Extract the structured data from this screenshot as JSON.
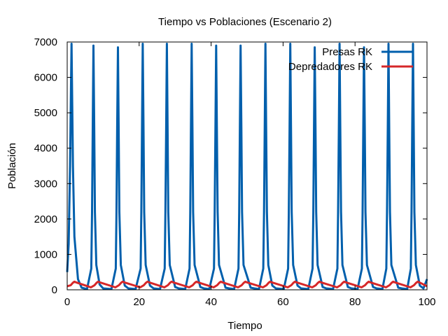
{
  "chart_data": {
    "type": "line",
    "title": "Tiempo vs Poblaciones (Escenario 2)",
    "xlabel": "Tiempo",
    "ylabel": "Población",
    "xlim": [
      0,
      100
    ],
    "ylim": [
      0,
      7000
    ],
    "xticks": [
      0,
      20,
      40,
      60,
      80,
      100
    ],
    "yticks": [
      0,
      1000,
      2000,
      3000,
      4000,
      5000,
      6000,
      7000
    ],
    "grid": false,
    "legend_position": "top-right",
    "series": [
      {
        "name": "Presas RK",
        "color": "#005fac",
        "x": [
          0,
          0.4,
          0.8,
          1.0,
          1.2,
          1.4,
          1.6,
          2.0,
          3.0,
          4.0,
          5.5,
          6.7,
          6.9,
          7.1,
          7.3,
          7.5,
          7.7,
          8.1,
          9.0,
          10.0,
          12.3,
          13.5,
          13.7,
          13.9,
          14.1,
          14.3,
          14.5,
          14.9,
          16.0,
          17.0,
          19.0,
          20.4,
          20.6,
          20.8,
          21.0,
          21.2,
          21.4,
          21.8,
          23.0,
          24.0,
          25.8,
          27.1,
          27.3,
          27.5,
          27.7,
          27.9,
          28.1,
          28.5,
          30.0,
          31.0,
          32.8,
          34.0,
          34.2,
          34.4,
          34.6,
          34.8,
          35.0,
          35.4,
          37.0,
          38.0,
          39.5,
          40.8,
          41.0,
          41.2,
          41.4,
          41.6,
          41.8,
          42.2,
          44.0,
          45.0,
          46.4,
          47.6,
          47.8,
          48.0,
          48.2,
          48.4,
          48.6,
          49.0,
          51.0,
          52.0,
          53.3,
          54.5,
          54.7,
          54.9,
          55.1,
          55.3,
          55.5,
          55.9,
          57.0,
          58.0,
          60.2,
          61.4,
          61.6,
          61.8,
          62.0,
          62.2,
          62.4,
          62.8,
          64.0,
          65.0,
          67.0,
          68.2,
          68.4,
          68.6,
          68.8,
          69.0,
          69.2,
          69.6,
          71.0,
          72.0,
          73.9,
          75.1,
          75.3,
          75.5,
          75.7,
          75.9,
          76.1,
          76.5,
          78.0,
          79.0,
          80.7,
          81.9,
          82.1,
          82.3,
          82.5,
          82.7,
          82.9,
          83.3,
          85.0,
          86.0,
          87.6,
          88.7,
          88.9,
          89.1,
          89.3,
          89.5,
          89.7,
          90.1,
          92.0,
          93.0,
          94.5,
          95.5,
          95.7,
          95.9,
          96.1,
          96.3,
          96.5,
          96.9,
          98.0,
          99.0,
          100.0
        ],
        "values": [
          500,
          1300,
          3500,
          5200,
          6950,
          5200,
          3500,
          1500,
          300,
          60,
          20,
          600,
          2200,
          4600,
          6900,
          4600,
          2200,
          700,
          150,
          40,
          20,
          600,
          2200,
          4600,
          6850,
          4600,
          2200,
          700,
          120,
          40,
          20,
          600,
          2200,
          4600,
          6950,
          4600,
          2200,
          700,
          120,
          40,
          20,
          600,
          2200,
          4600,
          6950,
          4600,
          2200,
          700,
          80,
          40,
          20,
          600,
          2200,
          4600,
          6950,
          4600,
          2200,
          700,
          80,
          40,
          20,
          600,
          2200,
          4600,
          6900,
          4600,
          2200,
          700,
          60,
          40,
          20,
          600,
          2200,
          4600,
          6900,
          4600,
          2200,
          700,
          60,
          40,
          20,
          600,
          2200,
          4600,
          6950,
          4600,
          2200,
          700,
          120,
          40,
          20,
          600,
          2200,
          4600,
          6950,
          4600,
          2200,
          700,
          120,
          40,
          20,
          600,
          2200,
          4600,
          6850,
          4600,
          2200,
          700,
          80,
          40,
          20,
          600,
          2200,
          4600,
          6950,
          4600,
          2200,
          700,
          80,
          40,
          20,
          600,
          2200,
          4600,
          6850,
          4600,
          2200,
          700,
          80,
          40,
          20,
          600,
          2200,
          4600,
          6950,
          4600,
          2200,
          700,
          60,
          40,
          20,
          600,
          2200,
          4600,
          6950,
          4600,
          2200,
          700,
          120,
          40,
          300
        ]
      },
      {
        "name": "Depredadores RK",
        "color": "#d62728",
        "x": [
          0,
          1.0,
          1.6,
          2.0,
          2.5,
          6.6,
          7.6,
          8.2,
          8.6,
          9.1,
          13.4,
          14.4,
          15.0,
          15.4,
          15.9,
          20.3,
          21.3,
          21.9,
          22.3,
          22.8,
          27.0,
          28.0,
          28.6,
          29.0,
          29.5,
          33.9,
          34.9,
          35.5,
          35.9,
          36.4,
          40.7,
          41.7,
          42.3,
          42.7,
          43.2,
          47.5,
          48.5,
          49.1,
          49.5,
          50.0,
          54.4,
          55.4,
          56.0,
          56.4,
          56.9,
          61.3,
          62.3,
          62.9,
          63.3,
          63.8,
          68.1,
          69.1,
          69.7,
          70.1,
          70.6,
          75.0,
          76.0,
          76.6,
          77.0,
          77.5,
          81.8,
          82.8,
          83.4,
          83.8,
          84.3,
          88.6,
          89.6,
          90.2,
          90.6,
          91.1,
          95.4,
          96.4,
          97.0,
          97.4,
          97.9,
          100.0
        ],
        "values": [
          100,
          130,
          200,
          230,
          210,
          70,
          130,
          200,
          230,
          210,
          70,
          130,
          200,
          230,
          210,
          70,
          130,
          200,
          230,
          210,
          70,
          130,
          200,
          230,
          210,
          70,
          130,
          200,
          230,
          210,
          70,
          130,
          200,
          230,
          210,
          70,
          130,
          200,
          230,
          210,
          70,
          130,
          200,
          230,
          210,
          70,
          130,
          200,
          230,
          210,
          70,
          130,
          200,
          230,
          210,
          70,
          130,
          200,
          230,
          210,
          70,
          130,
          200,
          230,
          210,
          70,
          130,
          200,
          230,
          210,
          70,
          130,
          200,
          230,
          210,
          100
        ]
      }
    ]
  }
}
